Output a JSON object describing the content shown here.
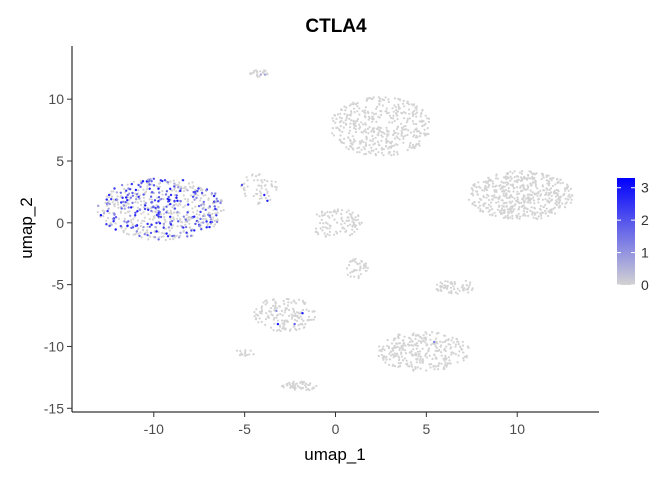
{
  "chart_data": {
    "type": "scatter",
    "title": "CTLA4",
    "xlabel": "umap_1",
    "ylabel": "umap_2",
    "xlim": [
      -14.5,
      14.5
    ],
    "ylim": [
      -15.3,
      14.3
    ],
    "x_ticks": [
      -10,
      -5,
      0,
      5,
      10
    ],
    "y_ticks": [
      -15,
      -10,
      -5,
      0,
      5,
      10
    ],
    "grid": false,
    "legend": {
      "placement": "right",
      "type": "colorbar",
      "ticks": [
        0,
        1,
        2,
        3
      ],
      "range": [
        0,
        3.3
      ],
      "low_color": "#d3d3d3",
      "high_color": "#0000ff"
    },
    "clusters": [
      {
        "cx": -9.6,
        "cy": 1.1,
        "rx": 3.5,
        "ry": 2.5,
        "n": 620,
        "expressing_fraction": 0.38
      },
      {
        "cx": -4.2,
        "cy": 12.1,
        "rx": 0.5,
        "ry": 0.3,
        "n": 25,
        "expressing_fraction": 0.05
      },
      {
        "cx": 2.5,
        "cy": 7.8,
        "rx": 2.8,
        "ry": 2.4,
        "n": 420,
        "expressing_fraction": 0.0
      },
      {
        "cx": 10.2,
        "cy": 2.2,
        "rx": 2.9,
        "ry": 2.0,
        "n": 520,
        "expressing_fraction": 0.0
      },
      {
        "cx": -4.2,
        "cy": 2.8,
        "rx": 1.0,
        "ry": 1.3,
        "n": 60,
        "expressing_fraction": 0.03
      },
      {
        "cx": 0.0,
        "cy": 0.0,
        "rx": 1.5,
        "ry": 1.2,
        "n": 100,
        "expressing_fraction": 0.0
      },
      {
        "cx": 1.2,
        "cy": -3.8,
        "rx": 0.6,
        "ry": 0.9,
        "n": 40,
        "expressing_fraction": 0.0
      },
      {
        "cx": 6.6,
        "cy": -5.2,
        "rx": 1.1,
        "ry": 0.6,
        "n": 60,
        "expressing_fraction": 0.0
      },
      {
        "cx": -2.8,
        "cy": -7.4,
        "rx": 1.7,
        "ry": 1.4,
        "n": 160,
        "expressing_fraction": 0.01
      },
      {
        "cx": 4.8,
        "cy": -10.4,
        "rx": 2.6,
        "ry": 1.6,
        "n": 300,
        "expressing_fraction": 0.01
      },
      {
        "cx": -2.0,
        "cy": -13.2,
        "rx": 1.0,
        "ry": 0.4,
        "n": 50,
        "expressing_fraction": 0.0
      },
      {
        "cx": -5.0,
        "cy": -10.5,
        "rx": 0.6,
        "ry": 0.3,
        "n": 15,
        "expressing_fraction": 0.0
      }
    ]
  }
}
